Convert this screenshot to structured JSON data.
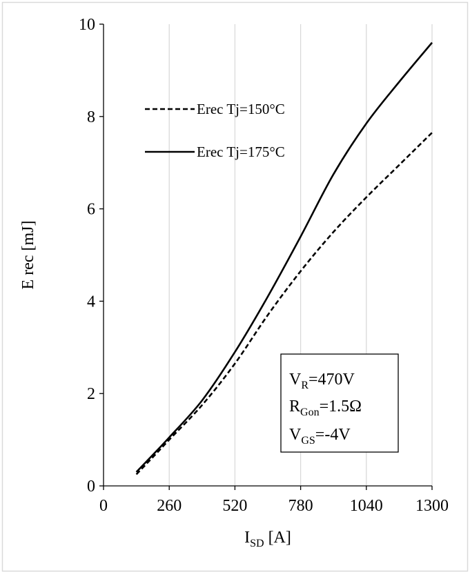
{
  "chart_data": {
    "type": "line",
    "title": "",
    "xlabel": {
      "main": "I",
      "sub": "SD",
      "rest": " [A]"
    },
    "ylabel": "E rec [mJ]",
    "xlim": [
      0,
      1300
    ],
    "ylim": [
      0,
      10
    ],
    "x_ticks": [
      0,
      260,
      520,
      780,
      1040,
      1300
    ],
    "y_ticks": [
      0,
      2,
      4,
      6,
      8,
      10
    ],
    "grid": {
      "vertical": true,
      "horizontal": false
    },
    "legend_position": "top-left",
    "series": [
      {
        "name": "Erec Tj=150°C",
        "style": "dashed",
        "color": "#000000",
        "x": [
          130,
          200,
          260,
          390,
          520,
          650,
          780,
          910,
          1040,
          1170,
          1300
        ],
        "y": [
          0.25,
          0.65,
          1.0,
          1.75,
          2.65,
          3.7,
          4.65,
          5.5,
          6.25,
          6.95,
          7.65
        ]
      },
      {
        "name": "Erec Tj=175°C",
        "style": "solid",
        "color": "#000000",
        "x": [
          130,
          200,
          260,
          390,
          520,
          650,
          780,
          910,
          1040,
          1170,
          1300
        ],
        "y": [
          0.3,
          0.7,
          1.05,
          1.85,
          2.9,
          4.1,
          5.4,
          6.75,
          7.85,
          8.75,
          9.6
        ]
      }
    ],
    "annotation": {
      "lines": [
        {
          "main": "V",
          "sub": "R",
          "rest": "=470V"
        },
        {
          "main": "R",
          "sub": "Gon",
          "rest": "=1.5Ω"
        },
        {
          "main": "V",
          "sub": "GS",
          "rest": "=-4V"
        }
      ]
    }
  }
}
